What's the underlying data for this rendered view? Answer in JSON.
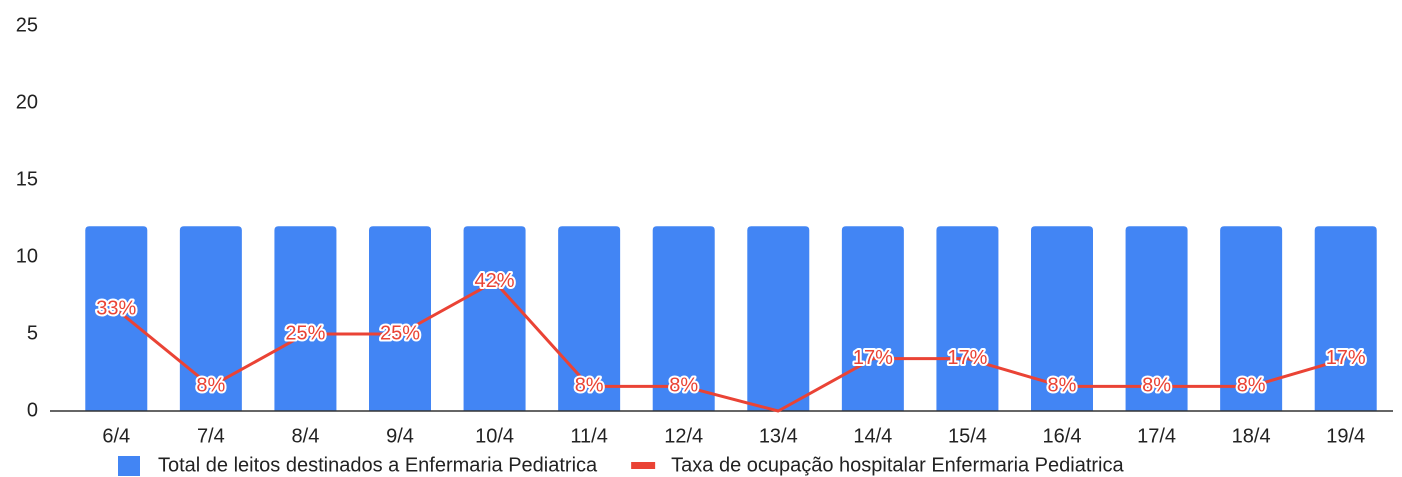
{
  "chart_data": {
    "type": "bar_line",
    "categories": [
      "6/4",
      "7/4",
      "8/4",
      "9/4",
      "10/4",
      "11/4",
      "12/4",
      "13/4",
      "14/4",
      "15/4",
      "16/4",
      "17/4",
      "18/4",
      "19/4"
    ],
    "series": [
      {
        "name": "Total de leitos destinados a Enfermaria Pediatrica",
        "color": "#4285f4",
        "type": "bar",
        "values": [
          12,
          12,
          12,
          12,
          12,
          12,
          12,
          12,
          12,
          12,
          12,
          12,
          12,
          12
        ]
      },
      {
        "name": "Taxa de ocupação hospitalar Enfermaria Pediatrica",
        "color": "#ea4335",
        "type": "line",
        "axis": "y2",
        "values": [
          33,
          8,
          25,
          25,
          42,
          8,
          8,
          0,
          17,
          17,
          8,
          8,
          8,
          17
        ],
        "value_labels": [
          "33%",
          "8%",
          "25%",
          "25%",
          "42%",
          "8%",
          "8%",
          null,
          "17%",
          "17%",
          "8%",
          "8%",
          "8%",
          "17%"
        ]
      }
    ],
    "ylim": [
      0,
      25
    ],
    "yticks": [
      0,
      5,
      10,
      15,
      20,
      25
    ],
    "y2lim": [
      0,
      125
    ],
    "legend": "bottom"
  }
}
